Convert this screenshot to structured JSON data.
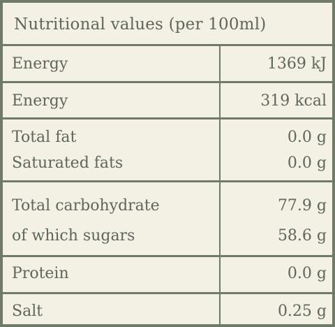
{
  "title": "Nutritional values (per 100ml)",
  "rows": [
    {
      "items": [
        {
          "name": "Energy",
          "value": "1369 kJ"
        }
      ]
    },
    {
      "items": [
        {
          "name": "Energy",
          "value": "319 kcal"
        }
      ]
    },
    {
      "items": [
        {
          "name": "Total fat",
          "value": "0.0 g"
        },
        {
          "name": "Saturated fats",
          "value": "0.0 g"
        }
      ]
    },
    {
      "items": [
        {
          "name": "Total carbohydrate",
          "value": "77.9 g"
        },
        {
          "name": "of which sugars",
          "value": "58.6 g"
        }
      ]
    },
    {
      "items": [
        {
          "name": "Protein",
          "value": "0.0 g"
        }
      ]
    },
    {
      "items": [
        {
          "name": "Salt",
          "value": "0.25 g"
        }
      ]
    }
  ],
  "colors": {
    "background": "#f3f1e4",
    "border": "#6f7a68",
    "text": "#5f665b"
  }
}
